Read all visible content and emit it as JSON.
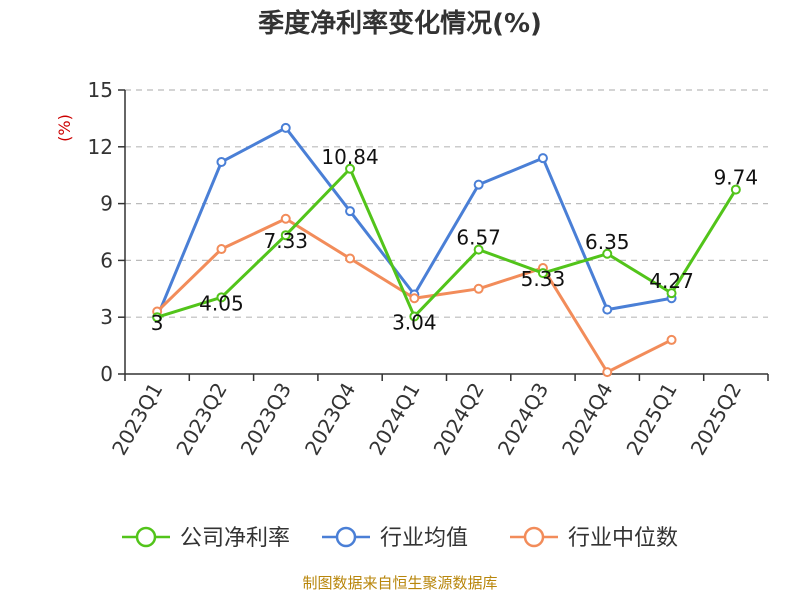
{
  "chart_data": {
    "type": "line",
    "title": "季度净利率变化情况(%)",
    "ylabel": "(%)",
    "ylim": [
      0,
      15
    ],
    "yticks": [
      0,
      3,
      6,
      9,
      12,
      15
    ],
    "grid": true,
    "legend_position": "bottom",
    "categories": [
      "2023Q1",
      "2023Q2",
      "2023Q3",
      "2023Q4",
      "2024Q1",
      "2024Q2",
      "2024Q3",
      "2024Q4",
      "2025Q1",
      "2025Q2"
    ],
    "series": [
      {
        "name": "公司净利率",
        "color": "#52c41a",
        "values": [
          3,
          4.05,
          7.33,
          10.84,
          3.04,
          6.57,
          5.33,
          6.35,
          4.27,
          9.74
        ],
        "labels": [
          "3",
          "4.05",
          "7.33",
          "10.84",
          "3.04",
          "6.57",
          "5.33",
          "6.35",
          "4.27",
          "9.74"
        ]
      },
      {
        "name": "行业均值",
        "color": "#4a7fd6",
        "values": [
          3.0,
          11.2,
          13.0,
          8.6,
          4.2,
          10.0,
          11.4,
          3.4,
          4.0,
          null
        ]
      },
      {
        "name": "行业中位数",
        "color": "#f28c5a",
        "values": [
          3.3,
          6.6,
          8.2,
          6.1,
          4.0,
          4.5,
          5.6,
          0.1,
          1.8,
          null
        ]
      }
    ]
  },
  "source": "制图数据来自恒生聚源数据库"
}
